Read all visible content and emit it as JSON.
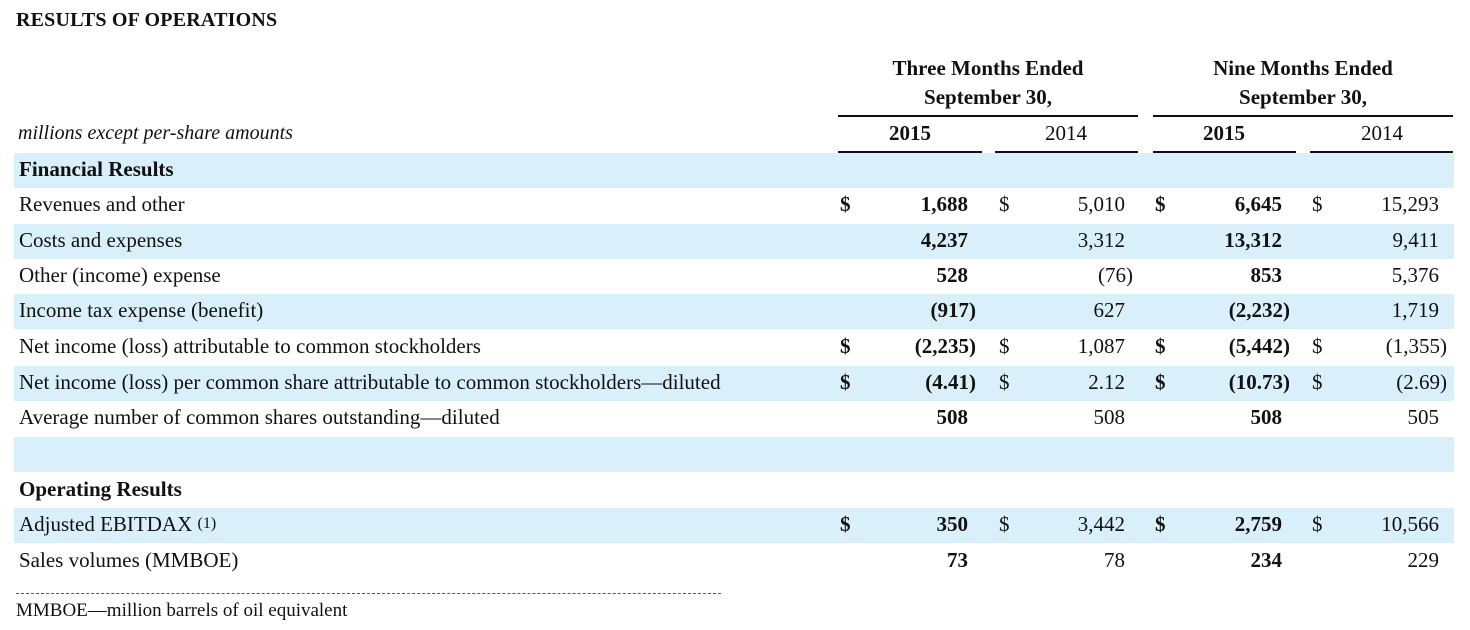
{
  "title": "RESULTS OF OPERATIONS",
  "units_label": "millions except per-share amounts",
  "headers": {
    "three_months_line1": "Three Months Ended",
    "three_months_line2": "September 30,",
    "nine_months_line1": "Nine Months Ended",
    "nine_months_line2": "September 30,",
    "years": [
      "2015",
      "2014",
      "2015",
      "2014"
    ]
  },
  "sections": {
    "financial": "Financial Results",
    "operating": "Operating Results"
  },
  "rows": [
    {
      "label": "Revenues and other",
      "d1": "$",
      "c1": "1,688",
      "d2": "$",
      "c2": "5,010",
      "d3": "$",
      "c3": "6,645",
      "d4": "$",
      "c4": "15,293"
    },
    {
      "label": "Costs and expenses",
      "c1": "4,237",
      "c2": "3,312",
      "c3": "13,312",
      "c4": "9,411"
    },
    {
      "label": "Other (income) expense",
      "c1": "528",
      "c2": "(76)",
      "c3": "853",
      "c4": "5,376"
    },
    {
      "label": "Income tax expense (benefit)",
      "c1": "(917)",
      "c2": "627",
      "c3": "(2,232)",
      "c4": "1,719"
    },
    {
      "label": "Net income (loss) attributable to common stockholders",
      "d1": "$",
      "c1": "(2,235)",
      "d2": "$",
      "c2": "1,087",
      "d3": "$",
      "c3": "(5,442)",
      "d4": "$",
      "c4": "(1,355)"
    },
    {
      "label": "Net income (loss) per common share attributable to common stockholders—diluted",
      "d1": "$",
      "c1": "(4.41)",
      "d2": "$",
      "c2": "2.12",
      "d3": "$",
      "c3": "(10.73)",
      "d4": "$",
      "c4": "(2.69)"
    },
    {
      "label": "Average number of common shares outstanding—diluted",
      "c1": "508",
      "c2": "508",
      "c3": "508",
      "c4": "505"
    },
    {
      "label": "Adjusted EBITDAX",
      "note": "(1)",
      "d1": "$",
      "c1": "350",
      "d2": "$",
      "c2": "3,442",
      "d3": "$",
      "c3": "2,759",
      "d4": "$",
      "c4": "10,566"
    },
    {
      "label": "Sales volumes (MMBOE)",
      "c1": "73",
      "c2": "78",
      "c3": "234",
      "c4": "229"
    }
  ],
  "footnote": "MMBOE—million barrels of oil equivalent"
}
